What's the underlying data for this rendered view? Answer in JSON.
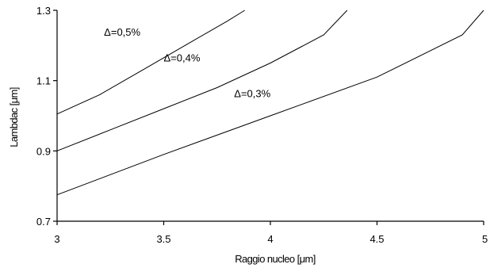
{
  "chart_data": {
    "type": "line",
    "xlabel": "Raggio nucleo [μm]",
    "ylabel": "Lambdac [μm]",
    "xlim": [
      3,
      5
    ],
    "ylim": [
      0.7,
      1.3
    ],
    "x_ticks": [
      "3",
      "3.5",
      "4",
      "4.5",
      "5"
    ],
    "y_ticks": [
      "0.7",
      "0.9",
      "1.1",
      "1.3"
    ],
    "grid": false,
    "legend": "none",
    "series": [
      {
        "name": "Δ=0,5%",
        "x": [
          3.0,
          3.2,
          3.4,
          3.6,
          3.8,
          3.88
        ],
        "y": [
          1.005,
          1.06,
          1.13,
          1.2,
          1.27,
          1.3
        ]
      },
      {
        "name": "Δ=0,4%",
        "x": [
          3.0,
          3.25,
          3.5,
          3.75,
          4.0,
          4.25,
          4.36
        ],
        "y": [
          0.9,
          0.96,
          1.02,
          1.08,
          1.15,
          1.23,
          1.3
        ]
      },
      {
        "name": "Δ=0,3%",
        "x": [
          3.0,
          3.5,
          4.0,
          4.5,
          4.9,
          5.0
        ],
        "y": [
          0.775,
          0.89,
          1.0,
          1.11,
          1.23,
          1.3
        ]
      }
    ]
  }
}
